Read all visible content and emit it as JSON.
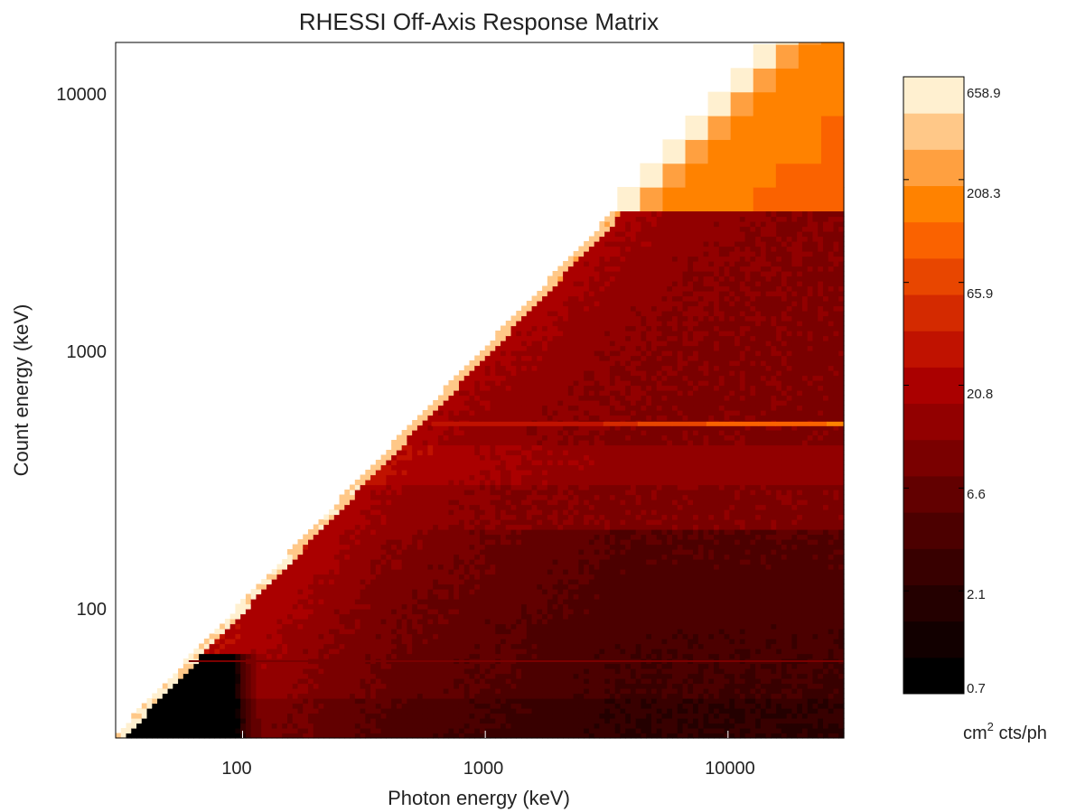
{
  "chart_data": {
    "type": "heatmap",
    "title": "RHESSI Off-Axis Response Matrix",
    "xlabel": "Photon energy (keV)",
    "ylabel": "Count energy (keV)",
    "x_scale": "log",
    "y_scale": "log",
    "xlim": [
      30,
      30000
    ],
    "ylim": [
      30,
      16000
    ],
    "x_ticks": [
      100,
      1000,
      10000
    ],
    "x_tick_labels": [
      "100",
      "1000",
      "10000"
    ],
    "y_ticks": [
      100,
      1000,
      10000
    ],
    "y_tick_labels": [
      "100",
      "1000",
      "10000"
    ],
    "colorbar": {
      "label": "cm",
      "label_superscript": "2",
      "label_suffix": " cts/ph",
      "scale": "log",
      "range": [
        0.7,
        900
      ],
      "ticks": [
        0.7,
        2.1,
        6.6,
        20.8,
        65.9,
        208.3,
        658.9
      ],
      "tick_labels": [
        "0.7",
        "2.1",
        "6.6",
        "20.8",
        "65.9",
        "208.3",
        "658.9"
      ],
      "colors": [
        "#000000",
        "#120000",
        "#240000",
        "#380000",
        "#4c0000",
        "#620000",
        "#7a0000",
        "#920000",
        "#aa0000",
        "#c01200",
        "#d42a00",
        "#e84600",
        "#fa6200",
        "#ff8200",
        "#ffa040",
        "#ffc888",
        "#fff0d0"
      ]
    },
    "features": {
      "photopeak_diagonal_value": 600,
      "high_energy_block_start_keV": 3500,
      "horizontal_line_count_energy_keV": 511,
      "horizontal_line_start_photon_keV": 600,
      "lower_edge_count_energy_keV": 60
    }
  }
}
